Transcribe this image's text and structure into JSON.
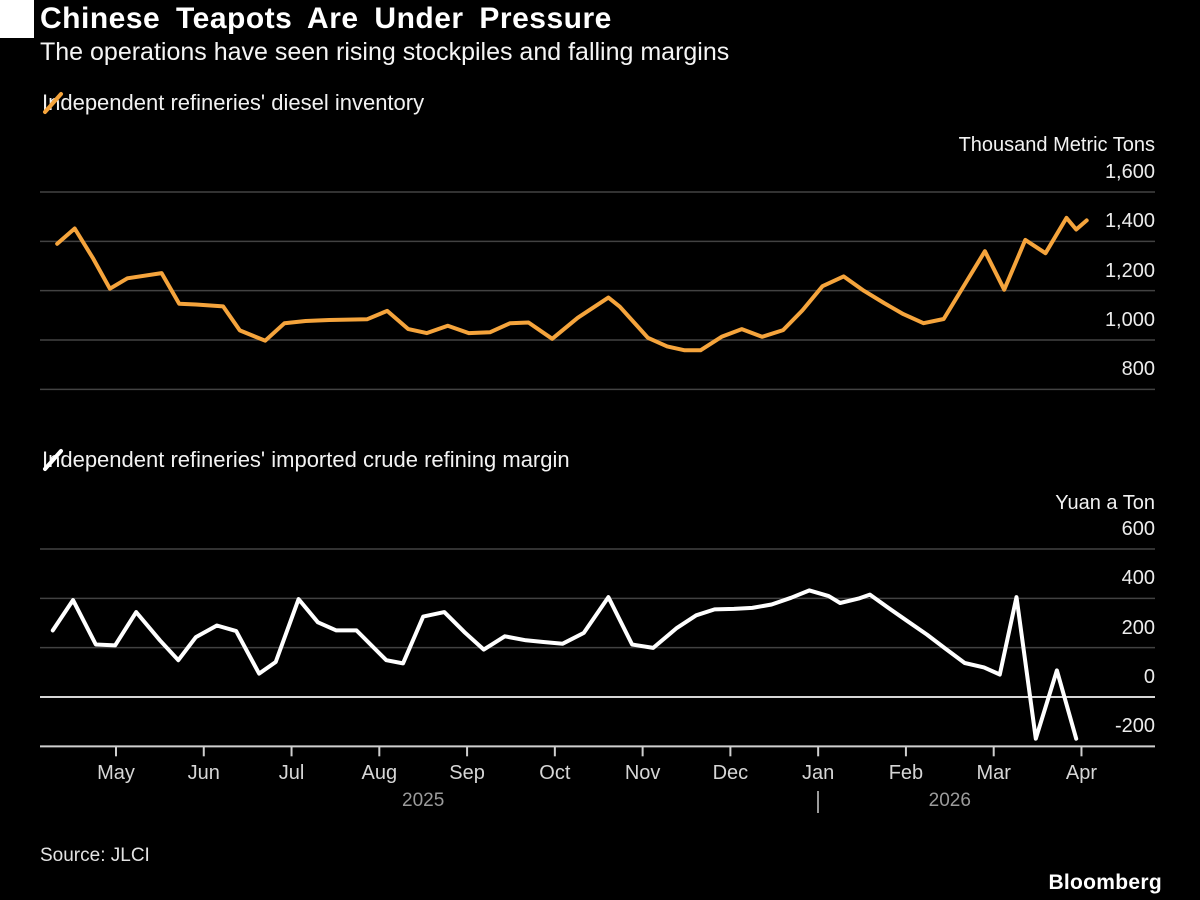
{
  "title": "Chinese Teapots Are Under Pressure",
  "subtitle": "The operations have seen rising stockpiles and falling margins",
  "source": "Source: JLCI",
  "brand": "Bloomberg",
  "colors": {
    "background": "#000000",
    "accent_orange": "#F5A43C",
    "line_white": "#FFFFFF",
    "grid": "#424242",
    "zero_line": "#D6D6D6",
    "axis": "#CFCFCF",
    "month_label": "#D6D6D6",
    "year_label": "#9B9B9B"
  },
  "x_axis": {
    "months": [
      "May",
      "Jun",
      "Jul",
      "Aug",
      "Sep",
      "Oct",
      "Nov",
      "Dec",
      "Jan",
      "Feb",
      "Mar",
      "Apr"
    ],
    "year_markers": [
      {
        "label": "2025",
        "between_ticks": [
          3,
          4
        ]
      },
      {
        "label": "2026",
        "between_ticks": [
          9,
          10
        ]
      }
    ],
    "year_separator_at_tick": 8
  },
  "chart_data": [
    {
      "type": "line",
      "name": "Independent refineries' diesel inventory",
      "unit": "Thousand Metric Tons",
      "color": "#F5A43C",
      "ylim": [
        800,
        1600
      ],
      "x_unit": "month position: 0 = May 2025 tick, 11 = Apr 2026 tick; weekly data",
      "yticks": [
        {
          "v": 1600,
          "label": "1,600",
          "line": "grid"
        },
        {
          "v": 1400,
          "label": "1,400",
          "line": "grid"
        },
        {
          "v": 1200,
          "label": "1,200",
          "line": "grid"
        },
        {
          "v": 1000,
          "label": "1,000",
          "line": "grid"
        },
        {
          "v": 800,
          "label": "800",
          "line": "grid"
        }
      ],
      "points": [
        [
          -0.67,
          1390
        ],
        [
          -0.47,
          1452
        ],
        [
          -0.26,
          1330
        ],
        [
          -0.07,
          1208
        ],
        [
          0.13,
          1250
        ],
        [
          0.52,
          1271
        ],
        [
          0.72,
          1147
        ],
        [
          0.91,
          1144
        ],
        [
          1.22,
          1136
        ],
        [
          1.41,
          1039
        ],
        [
          1.7,
          997
        ],
        [
          1.92,
          1068
        ],
        [
          2.16,
          1077
        ],
        [
          2.43,
          1081
        ],
        [
          2.86,
          1084
        ],
        [
          3.09,
          1118
        ],
        [
          3.33,
          1044
        ],
        [
          3.54,
          1028
        ],
        [
          3.78,
          1058
        ],
        [
          4.02,
          1028
        ],
        [
          4.26,
          1031
        ],
        [
          4.49,
          1068
        ],
        [
          4.7,
          1071
        ],
        [
          4.97,
          1005
        ],
        [
          5.26,
          1090
        ],
        [
          5.61,
          1172
        ],
        [
          5.74,
          1135
        ],
        [
          6.06,
          1009
        ],
        [
          6.28,
          974
        ],
        [
          6.48,
          958
        ],
        [
          6.66,
          958
        ],
        [
          6.9,
          1013
        ],
        [
          7.13,
          1044
        ],
        [
          7.36,
          1013
        ],
        [
          7.6,
          1040
        ],
        [
          7.82,
          1120
        ],
        [
          8.05,
          1218
        ],
        [
          8.29,
          1258
        ],
        [
          8.52,
          1200
        ],
        [
          8.75,
          1150
        ],
        [
          8.97,
          1105
        ],
        [
          9.2,
          1068
        ],
        [
          9.43,
          1085
        ],
        [
          9.67,
          1225
        ],
        [
          9.9,
          1360
        ],
        [
          10.12,
          1204
        ],
        [
          10.36,
          1406
        ],
        [
          10.59,
          1352
        ],
        [
          10.83,
          1495
        ],
        [
          10.94,
          1448
        ],
        [
          11.06,
          1485
        ]
      ]
    },
    {
      "type": "line",
      "name": "Independent refineries' imported crude refining margin",
      "unit": "Yuan a Ton",
      "color": "#FFFFFF",
      "ylim": [
        -200,
        600
      ],
      "x_unit": "month position: 0 = May 2025 tick, 11 = Apr 2026 tick; weekly data",
      "yticks": [
        {
          "v": 600,
          "label": "600",
          "line": "grid"
        },
        {
          "v": 400,
          "label": "400",
          "line": "grid"
        },
        {
          "v": 200,
          "label": "200",
          "line": "grid"
        },
        {
          "v": 0,
          "label": "0",
          "line": "zero"
        },
        {
          "v": -200,
          "label": "-200",
          "line": "axis"
        }
      ],
      "points": [
        [
          -0.72,
          270
        ],
        [
          -0.49,
          393
        ],
        [
          -0.23,
          213
        ],
        [
          -0.01,
          209
        ],
        [
          0.23,
          344
        ],
        [
          0.5,
          230
        ],
        [
          0.71,
          149
        ],
        [
          0.91,
          243
        ],
        [
          1.15,
          290
        ],
        [
          1.37,
          267
        ],
        [
          1.63,
          95
        ],
        [
          1.82,
          142
        ],
        [
          2.08,
          397
        ],
        [
          2.3,
          303
        ],
        [
          2.51,
          270
        ],
        [
          2.74,
          270
        ],
        [
          3.08,
          149
        ],
        [
          3.27,
          136
        ],
        [
          3.5,
          326
        ],
        [
          3.74,
          344
        ],
        [
          3.97,
          263
        ],
        [
          4.19,
          192
        ],
        [
          4.43,
          246
        ],
        [
          4.67,
          230
        ],
        [
          4.87,
          223
        ],
        [
          5.09,
          216
        ],
        [
          5.33,
          260
        ],
        [
          5.61,
          405
        ],
        [
          5.88,
          213
        ],
        [
          6.12,
          199
        ],
        [
          6.39,
          280
        ],
        [
          6.61,
          331
        ],
        [
          6.82,
          355
        ],
        [
          7.04,
          357
        ],
        [
          7.25,
          361
        ],
        [
          7.47,
          375
        ],
        [
          7.69,
          402
        ],
        [
          7.9,
          432
        ],
        [
          8.12,
          409
        ],
        [
          8.25,
          381
        ],
        [
          8.46,
          399
        ],
        [
          8.59,
          415
        ],
        [
          8.8,
          361
        ],
        [
          9.02,
          307
        ],
        [
          9.24,
          253
        ],
        [
          9.45,
          196
        ],
        [
          9.67,
          138
        ],
        [
          9.89,
          120
        ],
        [
          10.07,
          91
        ],
        [
          10.26,
          405
        ],
        [
          10.48,
          -169
        ],
        [
          10.72,
          108
        ],
        [
          10.94,
          -169
        ]
      ]
    }
  ]
}
